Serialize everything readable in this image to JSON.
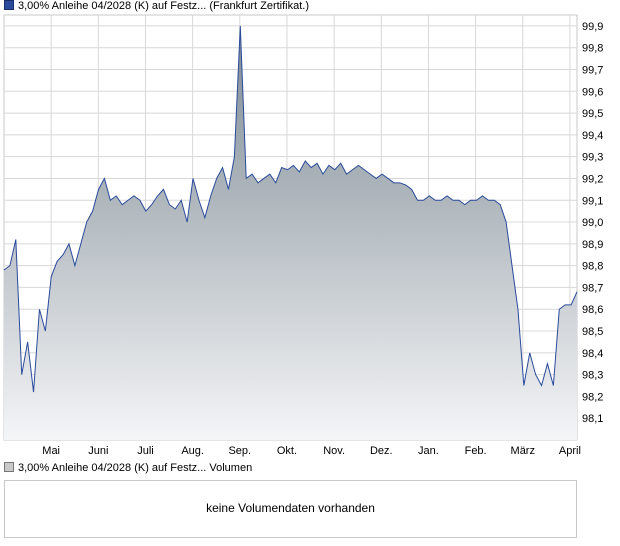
{
  "legend": {
    "price_label": "3,00% Anleihe 04/2028 (K) auf Festz... (Frankfurt Zertifikat.)",
    "volume_label": "3,00% Anleihe 04/2028 (K) auf Festz... Volumen"
  },
  "volume": {
    "message": "keine Volumendaten vorhanden"
  },
  "colors": {
    "line": "#2a4a9c",
    "fill_top": "#7d8a93",
    "fill_bottom": "#f4f5f7",
    "grid": "#d8d8d8"
  },
  "chart_data": {
    "type": "area",
    "ylim": [
      98.0,
      99.95
    ],
    "yticks": [
      "98,1",
      "98,2",
      "98,3",
      "98,4",
      "98,5",
      "98,6",
      "98,7",
      "98,8",
      "98,9",
      "99,0",
      "99,1",
      "99,2",
      "99,3",
      "99,4",
      "99,5",
      "99,6",
      "99,7",
      "99,8",
      "99,9"
    ],
    "month_labels": [
      "Mai",
      "Juni",
      "Juli",
      "Aug.",
      "Sep.",
      "Okt.",
      "Nov.",
      "Dez.",
      "Jan.",
      "Feb.",
      "März",
      "April"
    ],
    "grid": true,
    "series": [
      {
        "values": [
          98.78,
          98.8,
          98.92,
          98.3,
          98.45,
          98.22,
          98.6,
          98.5,
          98.75,
          98.82,
          98.85,
          98.9,
          98.8,
          98.9,
          99.0,
          99.05,
          99.15,
          99.2,
          99.1,
          99.12,
          99.08,
          99.1,
          99.12,
          99.1,
          99.05,
          99.08,
          99.12,
          99.15,
          99.08,
          99.06,
          99.1,
          99.0,
          99.2,
          99.1,
          99.02,
          99.12,
          99.2,
          99.25,
          99.15,
          99.3,
          99.9,
          99.2,
          99.22,
          99.18,
          99.2,
          99.22,
          99.18,
          99.25,
          99.24,
          99.26,
          99.23,
          99.28,
          99.25,
          99.27,
          99.22,
          99.26,
          99.24,
          99.27,
          99.22,
          99.24,
          99.26,
          99.24,
          99.22,
          99.2,
          99.22,
          99.2,
          99.18,
          99.18,
          99.17,
          99.15,
          99.1,
          99.1,
          99.12,
          99.1,
          99.1,
          99.12,
          99.1,
          99.1,
          99.08,
          99.1,
          99.1,
          99.12,
          99.1,
          99.1,
          99.08,
          99.0,
          98.8,
          98.6,
          98.25,
          98.4,
          98.3,
          98.25,
          98.35,
          98.25,
          98.6,
          98.62,
          98.62,
          98.68
        ]
      }
    ]
  }
}
